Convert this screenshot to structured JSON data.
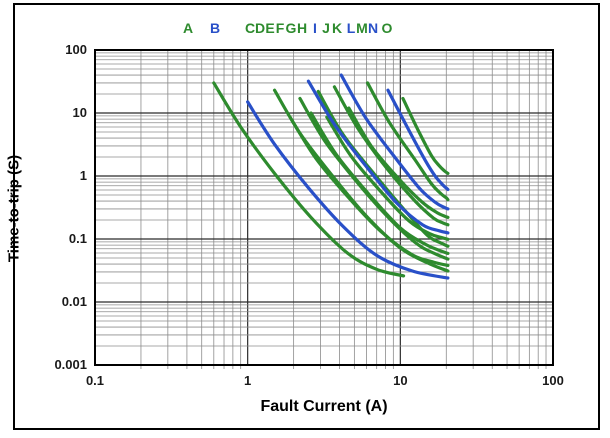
{
  "colors": {
    "green": "#2e8b2e",
    "blue": "#2950c8",
    "grid_minor": "#8c8c8c",
    "grid_major": "#2b2b2b",
    "frame": "#000000",
    "background": "#ffffff",
    "tick_text": "#1a1a1a"
  },
  "chart_data": {
    "type": "line",
    "title": "",
    "xlabel": "Fault Current (A)",
    "ylabel": "Time-to-trip (S)",
    "x_scale": "log",
    "y_scale": "log",
    "xlim": [
      0.1,
      100
    ],
    "ylim": [
      0.001,
      100
    ],
    "x_ticks": [
      "0.1",
      "1",
      "10",
      "100"
    ],
    "y_ticks": [
      "100",
      "10",
      "1",
      "0.1",
      "0.01",
      "0.001"
    ],
    "grid": "log major and minor gridlines on both axes",
    "legend_position": "top",
    "legend": [
      {
        "label": "A",
        "color": "green"
      },
      {
        "label": "B",
        "color": "blue"
      },
      {
        "label": "C",
        "color": "green"
      },
      {
        "label": "D",
        "color": "green"
      },
      {
        "label": "E",
        "color": "green"
      },
      {
        "label": "F",
        "color": "green"
      },
      {
        "label": "G",
        "color": "green"
      },
      {
        "label": "H",
        "color": "green"
      },
      {
        "label": "I",
        "color": "blue"
      },
      {
        "label": "J",
        "color": "green"
      },
      {
        "label": "K",
        "color": "green"
      },
      {
        "label": "L",
        "color": "blue"
      },
      {
        "label": "M",
        "color": "green"
      },
      {
        "label": "N",
        "color": "blue"
      },
      {
        "label": "O",
        "color": "green"
      }
    ],
    "series": [
      {
        "name": "A",
        "color": "green",
        "points": [
          [
            0.6,
            30
          ],
          [
            0.9,
            6
          ],
          [
            1.5,
            1.1
          ],
          [
            2.6,
            0.22
          ],
          [
            4.5,
            0.06
          ],
          [
            7,
            0.033
          ],
          [
            10.5,
            0.026
          ]
        ]
      },
      {
        "name": "B",
        "color": "blue",
        "points": [
          [
            1.0,
            15
          ],
          [
            1.5,
            3.2
          ],
          [
            2.5,
            0.65
          ],
          [
            4.2,
            0.16
          ],
          [
            7,
            0.055
          ],
          [
            12,
            0.031
          ],
          [
            20.5,
            0.024
          ]
        ]
      },
      {
        "name": "C",
        "color": "green",
        "points": [
          [
            1.5,
            23
          ],
          [
            2.2,
            4.8
          ],
          [
            3.6,
            1.0
          ],
          [
            6,
            0.23
          ],
          [
            10,
            0.072
          ],
          [
            15,
            0.042
          ],
          [
            20.5,
            0.031
          ]
        ]
      },
      {
        "name": "D",
        "color": "green",
        "points": [
          [
            1.9,
            8.5
          ],
          [
            2.8,
            1.9
          ],
          [
            4.6,
            0.45
          ],
          [
            7.5,
            0.13
          ],
          [
            12,
            0.056
          ],
          [
            16.5,
            0.043
          ],
          [
            20.5,
            0.038
          ]
        ]
      },
      {
        "name": "E",
        "color": "green",
        "points": [
          [
            2.2,
            17
          ],
          [
            3.2,
            3.6
          ],
          [
            5.2,
            0.8
          ],
          [
            8.5,
            0.21
          ],
          [
            13,
            0.082
          ],
          [
            17,
            0.058
          ],
          [
            20.5,
            0.048
          ]
        ]
      },
      {
        "name": "F",
        "color": "green",
        "points": [
          [
            2.6,
            10
          ],
          [
            3.8,
            2.2
          ],
          [
            6.2,
            0.52
          ],
          [
            10,
            0.15
          ],
          [
            14.5,
            0.083
          ],
          [
            18,
            0.066
          ],
          [
            20.5,
            0.059
          ]
        ]
      },
      {
        "name": "G",
        "color": "green",
        "points": [
          [
            2.9,
            22
          ],
          [
            4.2,
            4.6
          ],
          [
            6.8,
            1.05
          ],
          [
            10.5,
            0.3
          ],
          [
            15,
            0.115
          ],
          [
            18.5,
            0.086
          ],
          [
            20.5,
            0.077
          ]
        ]
      },
      {
        "name": "H",
        "color": "green",
        "points": [
          [
            3.3,
            8.6
          ],
          [
            4.8,
            2.0
          ],
          [
            7.8,
            0.5
          ],
          [
            11.5,
            0.19
          ],
          [
            15.5,
            0.122
          ],
          [
            18.5,
            0.106
          ],
          [
            20.5,
            0.099
          ]
        ]
      },
      {
        "name": "I",
        "color": "blue",
        "points": [
          [
            2.5,
            32
          ],
          [
            3.7,
            6.6
          ],
          [
            6.0,
            1.4
          ],
          [
            9.5,
            0.37
          ],
          [
            14,
            0.168
          ],
          [
            18,
            0.135
          ],
          [
            20.5,
            0.125
          ]
        ]
      },
      {
        "name": "J",
        "color": "green",
        "points": [
          [
            3.7,
            26
          ],
          [
            5.3,
            5.6
          ],
          [
            8.3,
            1.25
          ],
          [
            12.5,
            0.4
          ],
          [
            16.5,
            0.215
          ],
          [
            19,
            0.18
          ],
          [
            20.5,
            0.168
          ]
        ]
      },
      {
        "name": "K",
        "color": "green",
        "points": [
          [
            4.6,
            12
          ],
          [
            6.5,
            2.9
          ],
          [
            10,
            0.85
          ],
          [
            14,
            0.38
          ],
          [
            17.5,
            0.26
          ],
          [
            19.5,
            0.23
          ],
          [
            20.5,
            0.22
          ]
        ]
      },
      {
        "name": "L",
        "color": "blue",
        "points": [
          [
            4.1,
            40
          ],
          [
            6.0,
            8.0
          ],
          [
            9.5,
            1.8
          ],
          [
            13.5,
            0.62
          ],
          [
            17,
            0.38
          ],
          [
            19.5,
            0.315
          ],
          [
            20.5,
            0.3
          ]
        ]
      },
      {
        "name": "M",
        "color": "green",
        "points": [
          [
            6.1,
            30
          ],
          [
            8.5,
            7.0
          ],
          [
            12.5,
            1.8
          ],
          [
            16,
            0.75
          ],
          [
            18.5,
            0.52
          ],
          [
            20,
            0.45
          ],
          [
            20.5,
            0.42
          ]
        ]
      },
      {
        "name": "N",
        "color": "blue",
        "points": [
          [
            8.3,
            23
          ],
          [
            11,
            6.2
          ],
          [
            14.5,
            1.8
          ],
          [
            17,
            0.98
          ],
          [
            19,
            0.72
          ],
          [
            20.2,
            0.63
          ],
          [
            20.5,
            0.61
          ]
        ]
      },
      {
        "name": "O",
        "color": "green",
        "points": [
          [
            10.4,
            17
          ],
          [
            13,
            5.5
          ],
          [
            16,
            2.1
          ],
          [
            18,
            1.45
          ],
          [
            19.5,
            1.2
          ],
          [
            20.5,
            1.1
          ]
        ]
      }
    ]
  }
}
